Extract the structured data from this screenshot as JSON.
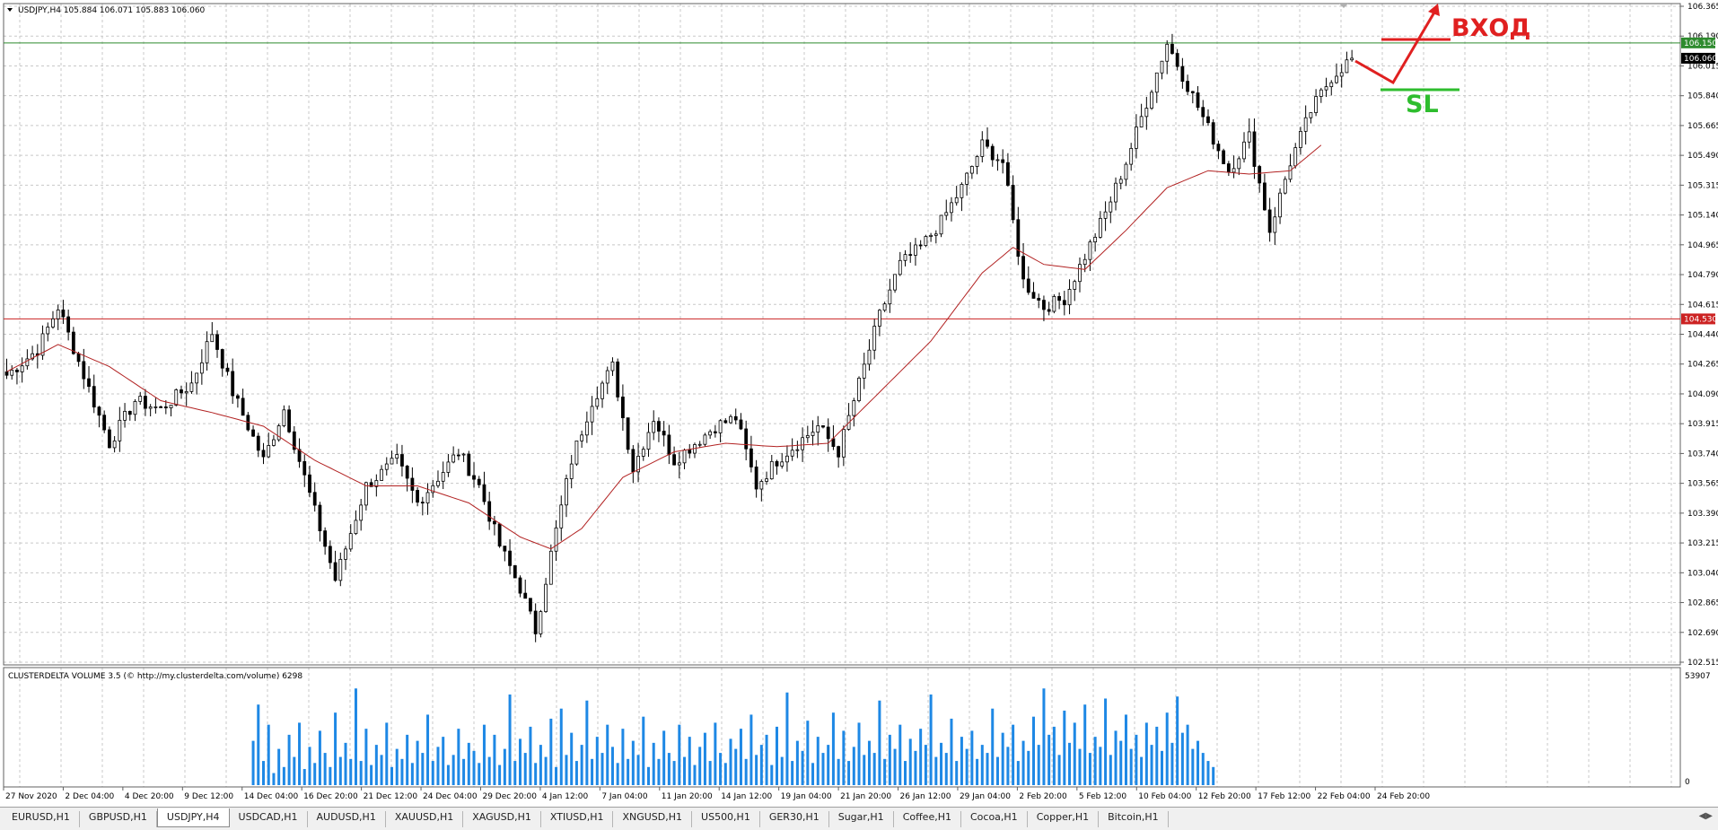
{
  "window": {
    "symbol_header": "USDJPY,H4  105.884 106.071 105.883 106.060"
  },
  "chart_data": {
    "type": "candlestick",
    "symbol": "USDJPY",
    "timeframe": "H4",
    "ohlc_header": {
      "open": 105.884,
      "high": 106.071,
      "low": 105.883,
      "close": 106.06
    },
    "ylim": [
      102.515,
      106.365
    ],
    "y_ticks": [
      "106.365",
      "106.190",
      "106.015",
      "105.840",
      "105.665",
      "105.490",
      "105.315",
      "105.140",
      "104.965",
      "104.790",
      "104.615",
      "104.440",
      "104.265",
      "104.090",
      "103.915",
      "103.740",
      "103.565",
      "103.390",
      "103.215",
      "103.040",
      "102.865",
      "102.690",
      "102.515"
    ],
    "x_tick_labels": [
      "27 Nov 2020",
      "2 Dec 04:00",
      "4 Dec 20:00",
      "9 Dec 12:00",
      "14 Dec 04:00",
      "16 Dec 20:00",
      "21 Dec 12:00",
      "24 Dec 04:00",
      "29 Dec 20:00",
      "4 Jan 12:00",
      "7 Jan 04:00",
      "11 Jan 20:00",
      "14 Jan 12:00",
      "19 Jan 04:00",
      "21 Jan 20:00",
      "26 Jan 12:00",
      "29 Jan 04:00",
      "2 Feb 20:00",
      "5 Feb 12:00",
      "10 Feb 04:00",
      "12 Feb 20:00",
      "17 Feb 12:00",
      "22 Feb 04:00",
      "24 Feb 20:00"
    ],
    "horizontal_lines": [
      {
        "price": 106.15,
        "label": "106.150",
        "color": "#2e8b2e"
      },
      {
        "price": 104.53,
        "label": "104.530",
        "color": "#cc2222"
      }
    ],
    "current_price": {
      "price": 106.06,
      "label": "106.060"
    },
    "price_path": [
      [
        0,
        104.2
      ],
      [
        6,
        104.35
      ],
      [
        10,
        104.6
      ],
      [
        14,
        104.28
      ],
      [
        20,
        103.8
      ],
      [
        25,
        104.05
      ],
      [
        30,
        104.0
      ],
      [
        36,
        104.15
      ],
      [
        40,
        104.45
      ],
      [
        44,
        104.1
      ],
      [
        50,
        103.7
      ],
      [
        54,
        104.0
      ],
      [
        60,
        103.4
      ],
      [
        64,
        103.0
      ],
      [
        70,
        103.55
      ],
      [
        76,
        103.7
      ],
      [
        80,
        103.45
      ],
      [
        84,
        103.6
      ],
      [
        88,
        103.75
      ],
      [
        92,
        103.55
      ],
      [
        96,
        103.2
      ],
      [
        100,
        102.95
      ],
      [
        103,
        102.7
      ],
      [
        106,
        103.15
      ],
      [
        110,
        103.7
      ],
      [
        114,
        104.05
      ],
      [
        118,
        104.25
      ],
      [
        122,
        103.65
      ],
      [
        126,
        103.95
      ],
      [
        130,
        103.7
      ],
      [
        134,
        103.8
      ],
      [
        138,
        103.9
      ],
      [
        142,
        103.95
      ],
      [
        146,
        103.55
      ],
      [
        150,
        103.7
      ],
      [
        154,
        103.8
      ],
      [
        158,
        103.9
      ],
      [
        162,
        103.75
      ],
      [
        166,
        104.15
      ],
      [
        170,
        104.55
      ],
      [
        174,
        104.85
      ],
      [
        178,
        104.95
      ],
      [
        182,
        105.1
      ],
      [
        186,
        105.3
      ],
      [
        190,
        105.55
      ],
      [
        194,
        105.45
      ],
      [
        198,
        104.75
      ],
      [
        202,
        104.6
      ],
      [
        206,
        104.65
      ],
      [
        210,
        104.9
      ],
      [
        214,
        105.15
      ],
      [
        218,
        105.45
      ],
      [
        222,
        105.8
      ],
      [
        226,
        106.15
      ],
      [
        230,
        105.9
      ],
      [
        234,
        105.65
      ],
      [
        238,
        105.4
      ],
      [
        242,
        105.6
      ],
      [
        246,
        105.05
      ],
      [
        250,
        105.45
      ],
      [
        254,
        105.75
      ],
      [
        258,
        105.95
      ],
      [
        262,
        106.06
      ]
    ],
    "moving_average": {
      "color": "#b22222",
      "path": [
        [
          0,
          104.22
        ],
        [
          10,
          104.38
        ],
        [
          20,
          104.25
        ],
        [
          30,
          104.05
        ],
        [
          40,
          103.98
        ],
        [
          50,
          103.9
        ],
        [
          60,
          103.7
        ],
        [
          70,
          103.55
        ],
        [
          80,
          103.55
        ],
        [
          90,
          103.45
        ],
        [
          100,
          103.25
        ],
        [
          106,
          103.18
        ],
        [
          112,
          103.3
        ],
        [
          120,
          103.6
        ],
        [
          130,
          103.75
        ],
        [
          140,
          103.8
        ],
        [
          150,
          103.78
        ],
        [
          160,
          103.8
        ],
        [
          170,
          104.1
        ],
        [
          180,
          104.4
        ],
        [
          190,
          104.8
        ],
        [
          196,
          104.95
        ],
        [
          202,
          104.85
        ],
        [
          210,
          104.82
        ],
        [
          218,
          105.05
        ],
        [
          226,
          105.3
        ],
        [
          234,
          105.4
        ],
        [
          242,
          105.38
        ],
        [
          250,
          105.4
        ],
        [
          256,
          105.55
        ]
      ]
    },
    "annotations": [
      {
        "text": "ВХОД",
        "color": "#e02020"
      },
      {
        "text": "SL",
        "color": "#2ebd2e"
      }
    ],
    "volume_indicator": {
      "title": "CLUSTERDELTA VOLUME 3.5 (© http://my.clusterdelta.com/volume) 6298",
      "max_label": "53907",
      "min_label": "0",
      "bar_color": "#1e88e5",
      "bars_start_index": 48,
      "volumes": [
        22000,
        40000,
        12000,
        30000,
        6000,
        18000,
        9000,
        25000,
        14000,
        31000,
        8000,
        19000,
        11000,
        27000,
        16000,
        9000,
        36000,
        14000,
        21000,
        13000,
        48000,
        12000,
        28000,
        10000,
        20000,
        15000,
        31000,
        9000,
        18000,
        13000,
        25000,
        11000,
        22000,
        16000,
        35000,
        12000,
        19000,
        24000,
        10000,
        15000,
        28000,
        13000,
        21000,
        17000,
        11000,
        30000,
        14000,
        25000,
        10000,
        18000,
        45000,
        12000,
        23000,
        16000,
        29000,
        11000,
        20000,
        14000,
        33000,
        9000,
        38000,
        15000,
        26000,
        12000,
        20000,
        42000,
        13000,
        24000,
        16000,
        30000,
        19000,
        11000,
        28000,
        13000,
        22000,
        15000,
        34000,
        9000,
        21000,
        13000,
        27000,
        16000,
        12000,
        30000,
        14000,
        24000,
        10000,
        19000,
        26000,
        12000,
        31000,
        16000,
        11000,
        23000,
        18000,
        28000,
        13000,
        35000,
        15000,
        20000,
        25000,
        10000,
        29000,
        14000,
        46000,
        12000,
        22000,
        17000,
        32000,
        11000,
        24000,
        16000,
        20000,
        36000,
        13000,
        27000,
        12000,
        19000,
        31000,
        15000,
        22000,
        16000,
        42000,
        13000,
        25000,
        18000,
        30000,
        12000,
        23000,
        17000,
        28000,
        20000,
        45000,
        14000,
        21000,
        16000,
        33000,
        12000,
        24000,
        18000,
        27000,
        13000,
        20000,
        16000,
        38000,
        14000,
        26000,
        19000,
        30000,
        12000,
        22000,
        17000,
        34000,
        20000,
        48000,
        25000,
        29000,
        15000,
        37000,
        21000,
        31000,
        18000,
        40000,
        16000,
        24000,
        19000,
        43000,
        15000,
        27000,
        22000,
        35000,
        18000,
        25000,
        14000,
        31000,
        20000,
        29000,
        17000,
        36000,
        21000,
        44000,
        26000,
        30000,
        18000,
        22000,
        16000,
        12000,
        9000
      ]
    }
  },
  "tabs": [
    {
      "label": "EURUSD,H1",
      "active": false
    },
    {
      "label": "GBPUSD,H1",
      "active": false
    },
    {
      "label": "USDJPY,H4",
      "active": true
    },
    {
      "label": "USDCAD,H1",
      "active": false
    },
    {
      "label": "AUDUSD,H1",
      "active": false
    },
    {
      "label": "XAUUSD,H1",
      "active": false
    },
    {
      "label": "XAGUSD,H1",
      "active": false
    },
    {
      "label": "XTIUSD,H1",
      "active": false
    },
    {
      "label": "XNGUSD,H1",
      "active": false
    },
    {
      "label": "US500,H1",
      "active": false
    },
    {
      "label": "GER30,H1",
      "active": false
    },
    {
      "label": "Sugar,H1",
      "active": false
    },
    {
      "label": "Coffee,H1",
      "active": false
    },
    {
      "label": "Cocoa,H1",
      "active": false
    },
    {
      "label": "Copper,H1",
      "active": false
    },
    {
      "label": "Bitcoin,H1",
      "active": false
    }
  ]
}
